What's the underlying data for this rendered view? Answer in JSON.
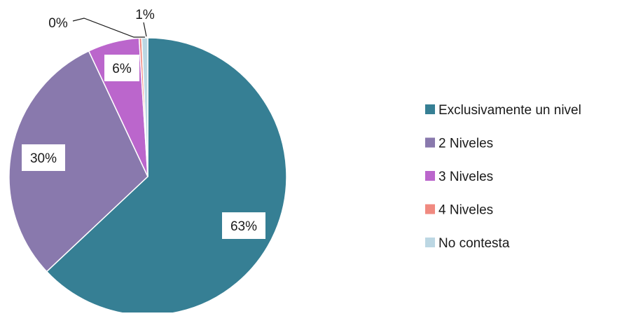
{
  "chart_data": {
    "type": "pie",
    "title": "",
    "start_angle_deg": 0,
    "direction": "clockwise",
    "slices": [
      {
        "label": "Exclusivamente un nivel",
        "value": 63,
        "display": "63%",
        "color": "#367F94"
      },
      {
        "label": "2 Niveles",
        "value": 30,
        "display": "30%",
        "color": "#8979AD"
      },
      {
        "label": "3 Niveles",
        "value": 6,
        "display": "6%",
        "color": "#BB66CC"
      },
      {
        "label": "4 Niveles",
        "value": 0.3,
        "display": "0%",
        "color": "#F08A80"
      },
      {
        "label": "No contesta",
        "value": 0.7,
        "display": "1%",
        "color": "#BCD7E3"
      }
    ],
    "legend_position": "right",
    "label_box_background": "#ffffff"
  }
}
